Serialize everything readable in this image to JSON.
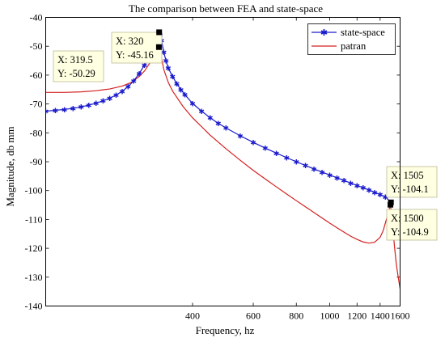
{
  "chart_data": {
    "type": "line",
    "title": "The comparison between FEA and state-space",
    "xlabel": "Frequency, hz",
    "ylabel": "Magnitude, db mm",
    "x_scale": "log",
    "xlim": [
      150,
      1600
    ],
    "ylim": [
      -140,
      -40
    ],
    "x_ticks": [
      400,
      600,
      800,
      1000,
      1200,
      1400,
      1600
    ],
    "x_tick_labels": [
      "400",
      "600",
      "800",
      "1000",
      "1200",
      "1400",
      "1600"
    ],
    "y_ticks": [
      -140,
      -130,
      -120,
      -110,
      -100,
      -90,
      -80,
      -70,
      -60,
      -50,
      -40
    ],
    "y_tick_labels": [
      "-140",
      "-130",
      "-120",
      "-110",
      "-100",
      "-90",
      "-80",
      "-70",
      "-60",
      "-50",
      "-40"
    ],
    "grid": false,
    "legend_position": "top-right",
    "series": [
      {
        "name": "state-space",
        "color": "#1a1acc",
        "marker": "star",
        "x": [
          150,
          160,
          170,
          180,
          190,
          200,
          210,
          220,
          230,
          240,
          250,
          260,
          270,
          280,
          290,
          300,
          305,
          310,
          315,
          318,
          320,
          322,
          325,
          330,
          335,
          340,
          350,
          360,
          370,
          380,
          400,
          425,
          450,
          475,
          500,
          550,
          600,
          650,
          700,
          750,
          800,
          850,
          900,
          950,
          1000,
          1050,
          1100,
          1150,
          1200,
          1250,
          1300,
          1350,
          1400,
          1450,
          1505
        ],
        "y": [
          -72.5,
          -72.2,
          -71.9,
          -71.5,
          -71.0,
          -70.4,
          -69.7,
          -68.9,
          -68.0,
          -66.9,
          -65.6,
          -64.0,
          -62.0,
          -59.5,
          -56.5,
          -53.0,
          -51.0,
          -48.7,
          -46.3,
          -45.5,
          -45.16,
          -46.0,
          -48.0,
          -52.0,
          -55.0,
          -57.5,
          -60.5,
          -63.0,
          -65.0,
          -66.8,
          -69.8,
          -72.5,
          -74.8,
          -76.7,
          -78.3,
          -81.0,
          -83.3,
          -85.3,
          -87.0,
          -88.6,
          -90.0,
          -91.3,
          -92.5,
          -93.6,
          -94.6,
          -95.6,
          -96.5,
          -97.4,
          -98.2,
          -99.0,
          -99.8,
          -100.6,
          -101.4,
          -102.2,
          -104.1
        ]
      },
      {
        "name": "patran",
        "color": "#d42020",
        "marker": "none",
        "x": [
          150,
          170,
          190,
          210,
          230,
          250,
          265,
          280,
          290,
          300,
          305,
          310,
          315,
          319.5,
          322,
          325,
          330,
          340,
          350,
          375,
          400,
          450,
          500,
          550,
          600,
          650,
          700,
          750,
          800,
          850,
          900,
          950,
          1000,
          1050,
          1100,
          1150,
          1200,
          1250,
          1300,
          1350,
          1400,
          1430,
          1460,
          1480,
          1500,
          1520,
          1540,
          1560,
          1580,
          1600
        ],
        "y": [
          -66.0,
          -66.0,
          -65.8,
          -65.4,
          -64.8,
          -63.8,
          -62.6,
          -60.5,
          -58.6,
          -56.0,
          -54.5,
          -52.7,
          -51.0,
          -50.29,
          -51.5,
          -54.0,
          -58.0,
          -62.5,
          -65.5,
          -70.8,
          -74.8,
          -80.8,
          -85.5,
          -89.5,
          -93.0,
          -96.0,
          -98.7,
          -101.2,
          -103.5,
          -105.6,
          -107.6,
          -109.5,
          -111.3,
          -112.9,
          -114.4,
          -115.8,
          -116.9,
          -117.8,
          -118.2,
          -117.9,
          -116.2,
          -113.8,
          -110.0,
          -107.5,
          -104.9,
          -111.0,
          -119.0,
          -125.5,
          -130.0,
          -134.0
        ]
      }
    ],
    "datatips": [
      {
        "x_text": "X: 320",
        "y_text": "Y: -45.16",
        "x": 320,
        "y": -45.16
      },
      {
        "x_text": "X: 319.5",
        "y_text": "Y: -50.29",
        "x": 319.5,
        "y": -50.29
      },
      {
        "x_text": "X: 1505",
        "y_text": "Y: -104.1",
        "x": 1505,
        "y": -104.1
      },
      {
        "x_text": "X: 1500",
        "y_text": "Y: -104.9",
        "x": 1500,
        "y": -104.9
      }
    ]
  }
}
